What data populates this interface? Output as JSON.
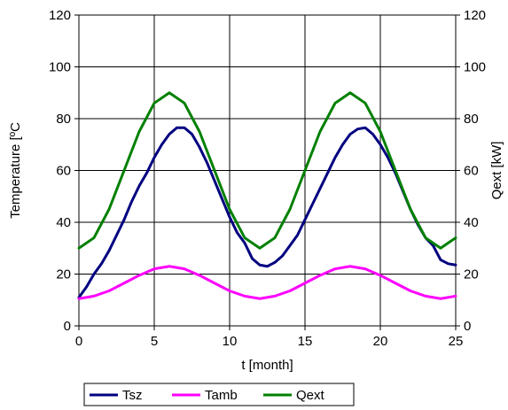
{
  "chart_data": {
    "type": "line",
    "xlabel": "t [month]",
    "ylabel": "Temperature [ºC",
    "y2label": "Qext [kW]",
    "xlim": [
      0,
      25
    ],
    "ylim": [
      0,
      120
    ],
    "y2lim": [
      0,
      120
    ],
    "xticks": [
      "0",
      "5",
      "10",
      "15",
      "20",
      "25"
    ],
    "yticks": [
      "0",
      "20",
      "40",
      "60",
      "80",
      "100",
      "120"
    ],
    "y2ticks": [
      "0",
      "20",
      "40",
      "60",
      "80",
      "100",
      "120"
    ],
    "grid": true,
    "legend_position": "bottom",
    "series": [
      {
        "name": "Tsz",
        "color": "#000080",
        "axis": "left",
        "x": [
          0,
          0.5,
          1,
          1.5,
          2,
          2.5,
          3,
          3.5,
          4,
          4.5,
          5,
          5.5,
          6,
          6.5,
          7,
          7.5,
          8,
          8.5,
          9,
          9.5,
          10,
          10.5,
          11,
          11.5,
          12,
          12.5,
          13,
          13.5,
          14,
          14.5,
          15,
          15.5,
          16,
          16.5,
          17,
          17.5,
          18,
          18.5,
          19,
          19.5,
          20,
          20.5,
          21,
          21.5,
          22,
          22.5,
          23,
          23.5,
          24,
          24.5,
          25
        ],
        "values": [
          11,
          15,
          20,
          24,
          29,
          35,
          41,
          48,
          54,
          59,
          65,
          70,
          74,
          76.5,
          76.5,
          74,
          69,
          63,
          56,
          49,
          42,
          36,
          32,
          26,
          23.5,
          23,
          24.5,
          27,
          31,
          35,
          41,
          47,
          53,
          59,
          65,
          70,
          74,
          76,
          76.5,
          74,
          70,
          65,
          59,
          52,
          45,
          39,
          34,
          31,
          25.5,
          24,
          23.5
        ]
      },
      {
        "name": "Tamb",
        "color": "#ff00ff",
        "axis": "left",
        "x": [
          0,
          1,
          2,
          3,
          4,
          5,
          6,
          7,
          8,
          9,
          10,
          11,
          12,
          13,
          14,
          15,
          16,
          17,
          18,
          19,
          20,
          21,
          22,
          23,
          24,
          25
        ],
        "values": [
          10.5,
          11.5,
          13.5,
          16.5,
          19.5,
          22,
          23,
          22,
          19.5,
          16.5,
          13.5,
          11.5,
          10.5,
          11.5,
          13.5,
          16.5,
          19.5,
          22,
          23,
          22,
          19.5,
          16.5,
          13.5,
          11.5,
          10.5,
          11.5
        ]
      },
      {
        "name": "Qext",
        "color": "#008000",
        "axis": "right",
        "x": [
          0,
          1,
          2,
          3,
          4,
          5,
          6,
          7,
          8,
          9,
          10,
          11,
          12,
          13,
          14,
          15,
          16,
          17,
          18,
          19,
          20,
          21,
          22,
          23,
          24,
          25
        ],
        "values": [
          30,
          34,
          45,
          60,
          75,
          86,
          90,
          86,
          75,
          60,
          45,
          34,
          30,
          34,
          45,
          60,
          75,
          86,
          90,
          86,
          75,
          60,
          45,
          34,
          30,
          34
        ]
      }
    ]
  }
}
